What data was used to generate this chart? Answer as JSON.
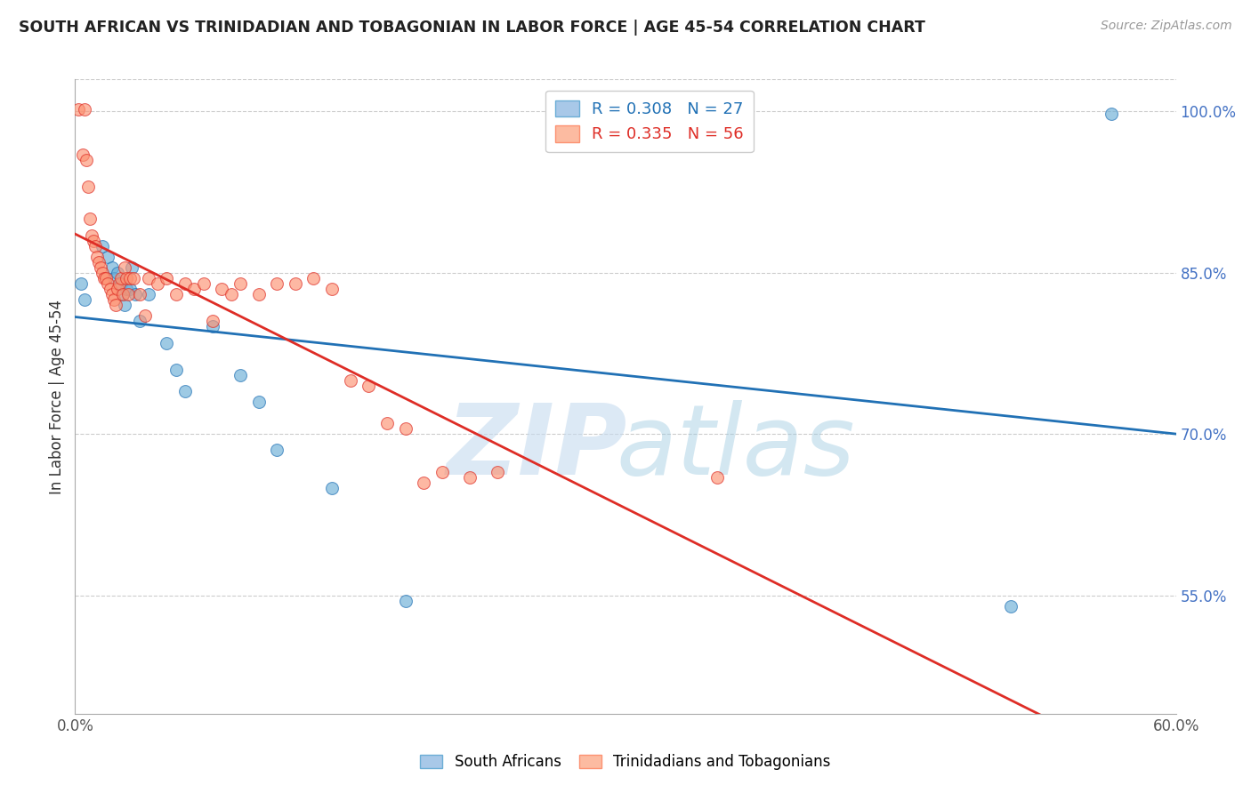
{
  "title": "SOUTH AFRICAN VS TRINIDADIAN AND TOBAGONIAN IN LABOR FORCE | AGE 45-54 CORRELATION CHART",
  "source": "Source: ZipAtlas.com",
  "ylabel": "In Labor Force | Age 45-54",
  "xlim": [
    0.0,
    60.0
  ],
  "ylim": [
    44.0,
    103.0
  ],
  "yticks": [
    55.0,
    70.0,
    85.0,
    100.0
  ],
  "ytick_labels": [
    "55.0%",
    "70.0%",
    "85.0%",
    "100.0%"
  ],
  "legend_blue_R": "0.308",
  "legend_blue_N": "27",
  "legend_pink_R": "0.335",
  "legend_pink_N": "56",
  "legend_label_blue": "South Africans",
  "legend_label_pink": "Trinidadians and Tobagonians",
  "blue_color": "#6baed6",
  "pink_color": "#fc9272",
  "blue_line_color": "#2171b5",
  "pink_line_color": "#de2d26",
  "watermark_color": "#c6dbef",
  "blue_x": [
    0.3,
    0.5,
    1.5,
    1.8,
    2.0,
    2.1,
    2.3,
    2.5,
    2.6,
    2.7,
    2.8,
    3.0,
    3.1,
    3.3,
    3.5,
    4.0,
    5.0,
    5.5,
    6.0,
    7.5,
    9.0,
    10.0,
    11.0,
    14.0,
    18.0,
    51.0,
    56.5
  ],
  "blue_y": [
    84.0,
    82.5,
    87.5,
    86.5,
    85.5,
    84.5,
    85.0,
    84.0,
    83.0,
    82.0,
    83.5,
    83.5,
    85.5,
    83.0,
    80.5,
    83.0,
    78.5,
    76.0,
    74.0,
    80.0,
    75.5,
    73.0,
    68.5,
    65.0,
    54.5,
    54.0,
    99.8
  ],
  "pink_x": [
    0.2,
    0.4,
    0.5,
    0.6,
    0.7,
    0.8,
    0.9,
    1.0,
    1.1,
    1.2,
    1.3,
    1.4,
    1.5,
    1.6,
    1.7,
    1.8,
    1.9,
    2.0,
    2.1,
    2.2,
    2.3,
    2.4,
    2.5,
    2.6,
    2.7,
    2.8,
    2.9,
    3.0,
    3.2,
    3.5,
    3.8,
    4.0,
    4.5,
    5.0,
    5.5,
    6.0,
    6.5,
    7.0,
    7.5,
    8.0,
    8.5,
    9.0,
    10.0,
    11.0,
    12.0,
    13.0,
    14.0,
    15.0,
    16.0,
    17.0,
    18.0,
    19.0,
    20.0,
    21.5,
    23.0,
    35.0
  ],
  "pink_y": [
    100.2,
    96.0,
    100.2,
    95.5,
    93.0,
    90.0,
    88.5,
    88.0,
    87.5,
    86.5,
    86.0,
    85.5,
    85.0,
    84.5,
    84.5,
    84.0,
    83.5,
    83.0,
    82.5,
    82.0,
    83.5,
    84.0,
    84.5,
    83.0,
    85.5,
    84.5,
    83.0,
    84.5,
    84.5,
    83.0,
    81.0,
    84.5,
    84.0,
    84.5,
    83.0,
    84.0,
    83.5,
    84.0,
    80.5,
    83.5,
    83.0,
    84.0,
    83.0,
    84.0,
    84.0,
    84.5,
    83.5,
    75.0,
    74.5,
    71.0,
    70.5,
    65.5,
    66.5,
    66.0,
    66.5,
    66.0
  ]
}
